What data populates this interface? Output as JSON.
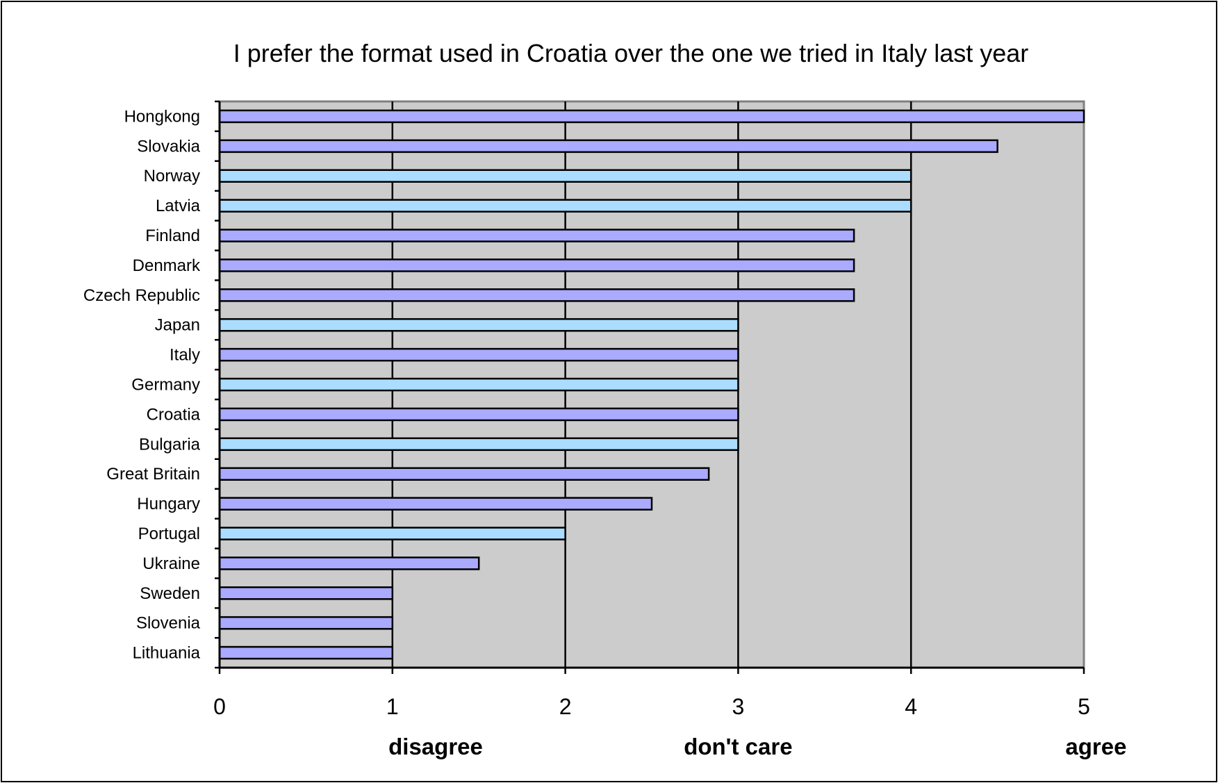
{
  "chart_data": {
    "type": "bar",
    "orientation": "horizontal",
    "title": "I prefer the format used in Croatia over the one we tried in Italy last year",
    "categories": [
      "Hongkong",
      "Slovakia",
      "Norway",
      "Latvia",
      "Finland",
      "Denmark",
      "Czech Republic",
      "Japan",
      "Italy",
      "Germany",
      "Croatia",
      "Bulgaria",
      "Great Britain",
      "Hungary",
      "Portugal",
      "Ukraine",
      "Sweden",
      "Slovenia",
      "Lithuania"
    ],
    "values": [
      5,
      4.5,
      4,
      4,
      3.67,
      3.67,
      3.67,
      3,
      3,
      3,
      3,
      3,
      2.83,
      2.5,
      2,
      1.5,
      1,
      1,
      1
    ],
    "bar_colors": [
      "#aaaaff",
      "#aaaaff",
      "#aaddff",
      "#aaddff",
      "#aaaaff",
      "#aaaaff",
      "#aaaaff",
      "#aaddff",
      "#aaaaff",
      "#aaddff",
      "#aaaaff",
      "#aaddff",
      "#aaaaff",
      "#aaaaff",
      "#aaddff",
      "#aaaaff",
      "#aaaaff",
      "#aaaaff",
      "#aaaaff"
    ],
    "xlim": [
      0,
      5
    ],
    "x_ticks": [
      "0",
      "1",
      "2",
      "3",
      "4",
      "5"
    ],
    "grid": "vertical",
    "plot_background": "#cccccc",
    "annotations": [
      {
        "text": "disagree",
        "x": 1.25
      },
      {
        "text": "don't care",
        "x": 3
      },
      {
        "text": "agree",
        "x": 5.07
      }
    ]
  }
}
